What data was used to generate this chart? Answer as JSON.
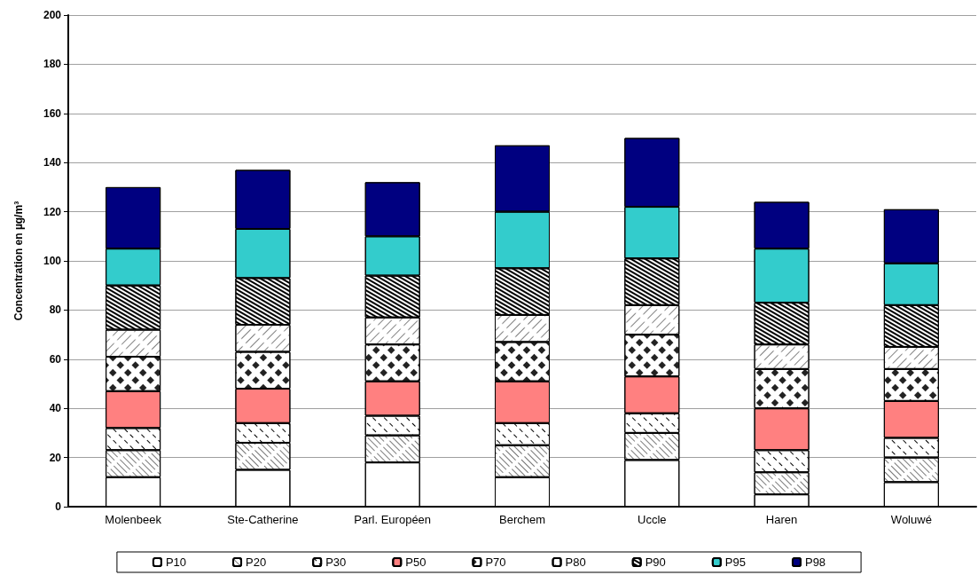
{
  "chart_data": {
    "type": "bar",
    "stacked": true,
    "ylabel": "Concentration en µg/m³",
    "categories": [
      "Molenbeek",
      "Ste-Catherine",
      "Parl. Européen",
      "Berchem",
      "Uccle",
      "Haren",
      "Woluwé"
    ],
    "series": [
      {
        "name": "P10",
        "color": "#ffffff",
        "values": [
          12,
          15,
          18,
          12,
          19,
          5,
          10
        ]
      },
      {
        "name": "P20",
        "color": "#ffffff",
        "values": [
          11,
          11,
          11,
          13,
          11,
          9,
          10
        ]
      },
      {
        "name": "P30",
        "color": "#ffffff",
        "values": [
          9,
          8,
          8,
          9,
          8,
          9,
          8
        ]
      },
      {
        "name": "P50",
        "color": "#ff8080",
        "values": [
          15,
          14,
          14,
          17,
          15,
          17,
          15
        ]
      },
      {
        "name": "P70",
        "color": "#ffffff",
        "values": [
          14,
          15,
          15,
          16,
          17,
          16,
          13
        ]
      },
      {
        "name": "P80",
        "color": "#ffffff",
        "values": [
          11,
          11,
          11,
          11,
          12,
          10,
          9
        ]
      },
      {
        "name": "P90",
        "color": "#ffffff",
        "values": [
          18,
          19,
          17,
          19,
          19,
          17,
          17
        ]
      },
      {
        "name": "P95",
        "color": "#33cccc",
        "values": [
          15,
          20,
          16,
          23,
          21,
          22,
          17
        ]
      },
      {
        "name": "P98",
        "color": "#000080",
        "values": [
          25,
          24,
          22,
          27,
          28,
          19,
          22
        ]
      }
    ],
    "ylim": [
      0,
      200
    ],
    "yticks": [
      0,
      20,
      40,
      60,
      80,
      100,
      120,
      140,
      160,
      180,
      200
    ],
    "grid": "y",
    "legend": "bottom"
  }
}
